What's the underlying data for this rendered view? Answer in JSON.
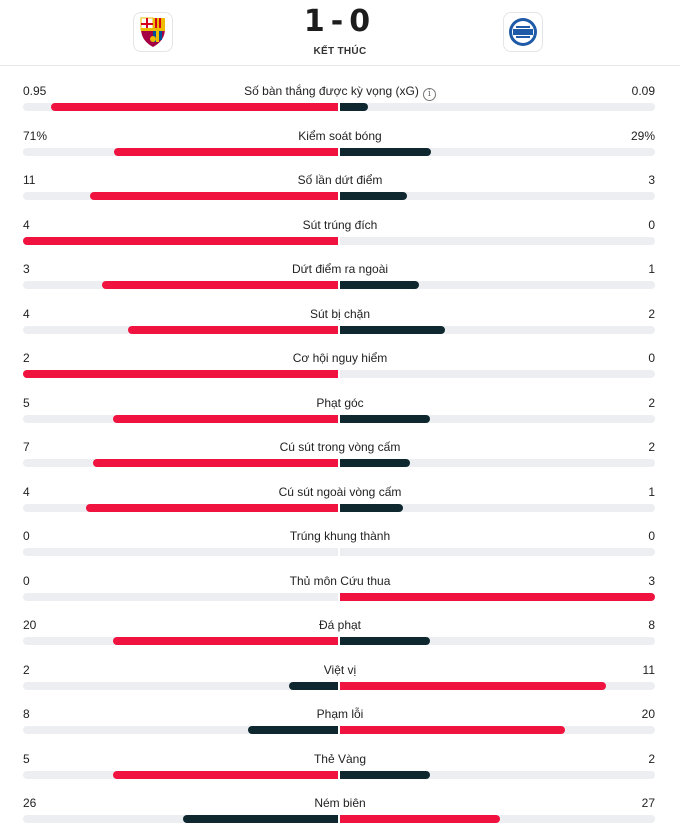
{
  "match": {
    "score": "1-0",
    "status": "KẾT THÚC",
    "home_logo": "fc-barcelona-crest",
    "away_logo": "deportivo-alaves-crest"
  },
  "colors": {
    "better": "#f0123f",
    "worse": "#0f2830",
    "track": "#eceef1"
  },
  "stats": [
    {
      "label": "Số bàn thắng được kỳ vọng (xG)",
      "home": "0.95",
      "away": "0.09",
      "home_share": 0.91,
      "away_share": 0.09,
      "info": true
    },
    {
      "label": "Kiểm soát bóng",
      "home": "71%",
      "away": "29%",
      "home_share": 0.71,
      "away_share": 0.29
    },
    {
      "label": "Số lần dứt điểm",
      "home": "11",
      "away": "3",
      "home_share": 0.786,
      "away_share": 0.214
    },
    {
      "label": "Sút trúng đích",
      "home": "4",
      "away": "0",
      "home_share": 1.0,
      "away_share": 0.0
    },
    {
      "label": "Dứt điểm ra ngoài",
      "home": "3",
      "away": "1",
      "home_share": 0.75,
      "away_share": 0.25
    },
    {
      "label": "Sút bị chặn",
      "home": "4",
      "away": "2",
      "home_share": 0.667,
      "away_share": 0.333
    },
    {
      "label": "Cơ hội nguy hiểm",
      "home": "2",
      "away": "0",
      "home_share": 1.0,
      "away_share": 0.0
    },
    {
      "label": "Phạt góc",
      "home": "5",
      "away": "2",
      "home_share": 0.714,
      "away_share": 0.286
    },
    {
      "label": "Cú sút trong vòng cấm",
      "home": "7",
      "away": "2",
      "home_share": 0.778,
      "away_share": 0.222
    },
    {
      "label": "Cú sút ngoài vòng cấm",
      "home": "4",
      "away": "1",
      "home_share": 0.8,
      "away_share": 0.2
    },
    {
      "label": "Trúng khung thành",
      "home": "0",
      "away": "0",
      "home_share": 0.0,
      "away_share": 0.0
    },
    {
      "label": "Thủ môn Cứu thua",
      "home": "0",
      "away": "3",
      "home_share": 0.0,
      "away_share": 1.0
    },
    {
      "label": "Đá phạt",
      "home": "20",
      "away": "8",
      "home_share": 0.714,
      "away_share": 0.286
    },
    {
      "label": "Việt vị",
      "home": "2",
      "away": "11",
      "home_share": 0.154,
      "away_share": 0.846
    },
    {
      "label": "Phạm lỗi",
      "home": "8",
      "away": "20",
      "home_share": 0.286,
      "away_share": 0.714
    },
    {
      "label": "Thẻ Vàng",
      "home": "5",
      "away": "2",
      "home_share": 0.714,
      "away_share": 0.286
    },
    {
      "label": "Ném biên",
      "home": "26",
      "away": "27",
      "home_share": 0.491,
      "away_share": 0.509
    }
  ]
}
